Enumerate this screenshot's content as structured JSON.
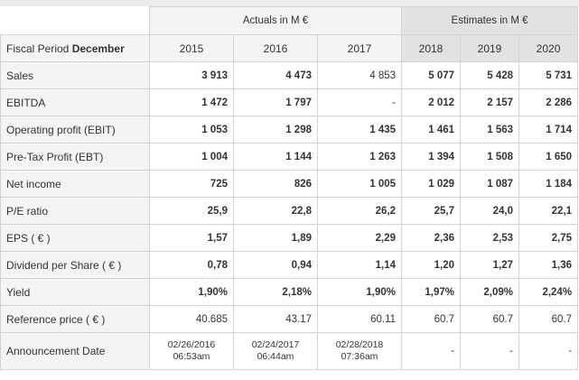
{
  "header": {
    "period_prefix": "Fiscal Period ",
    "period_month": "December",
    "actuals_label": "Actuals in M €",
    "estimates_label": "Estimates in M €",
    "years": [
      "2015",
      "2016",
      "2017",
      "2018",
      "2019",
      "2020"
    ]
  },
  "rows": [
    {
      "label": "Sales",
      "values": [
        "3 913",
        "4 473",
        "4 853",
        "5 077",
        "5 428",
        "5 731"
      ]
    },
    {
      "label": "EBITDA",
      "values": [
        "1 472",
        "1 797",
        "-",
        "2 012",
        "2 157",
        "2 286"
      ]
    },
    {
      "label": "Operating profit (EBIT)",
      "values": [
        "1 053",
        "1 298",
        "1 435",
        "1 461",
        "1 563",
        "1 714"
      ]
    },
    {
      "label": "Pre-Tax Profit (EBT)",
      "values": [
        "1 004",
        "1 144",
        "1 263",
        "1 394",
        "1 508",
        "1 650"
      ]
    },
    {
      "label": "Net income",
      "values": [
        "725",
        "826",
        "1 005",
        "1 029",
        "1 087",
        "1 184"
      ]
    },
    {
      "label": "P/E ratio",
      "values": [
        "25,9",
        "22,8",
        "26,2",
        "25,7",
        "24,0",
        "22,1"
      ]
    },
    {
      "label": "EPS ( € )",
      "values": [
        "1,57",
        "1,89",
        "2,29",
        "2,36",
        "2,53",
        "2,75"
      ]
    },
    {
      "label": "Dividend per Share ( € )",
      "values": [
        "0,78",
        "0,94",
        "1,14",
        "1,20",
        "1,27",
        "1,36"
      ]
    },
    {
      "label": "Yield",
      "values": [
        "1,90%",
        "2,18%",
        "1,90%",
        "1,97%",
        "2,09%",
        "2,24%"
      ]
    },
    {
      "label": "Reference price ( € )",
      "values": [
        "40.685",
        "43.17",
        "60.11",
        "60.7",
        "60.7",
        "60.7"
      ]
    }
  ],
  "announcement": {
    "label": "Announcement Date",
    "dates": [
      {
        "date": "02/26/2016",
        "time": "06:53am"
      },
      {
        "date": "02/24/2017",
        "time": "06:44am"
      },
      {
        "date": "02/28/2018",
        "time": "07:36am"
      },
      {
        "date": "-",
        "time": ""
      },
      {
        "date": "-",
        "time": ""
      },
      {
        "date": "-",
        "time": ""
      }
    ]
  }
}
